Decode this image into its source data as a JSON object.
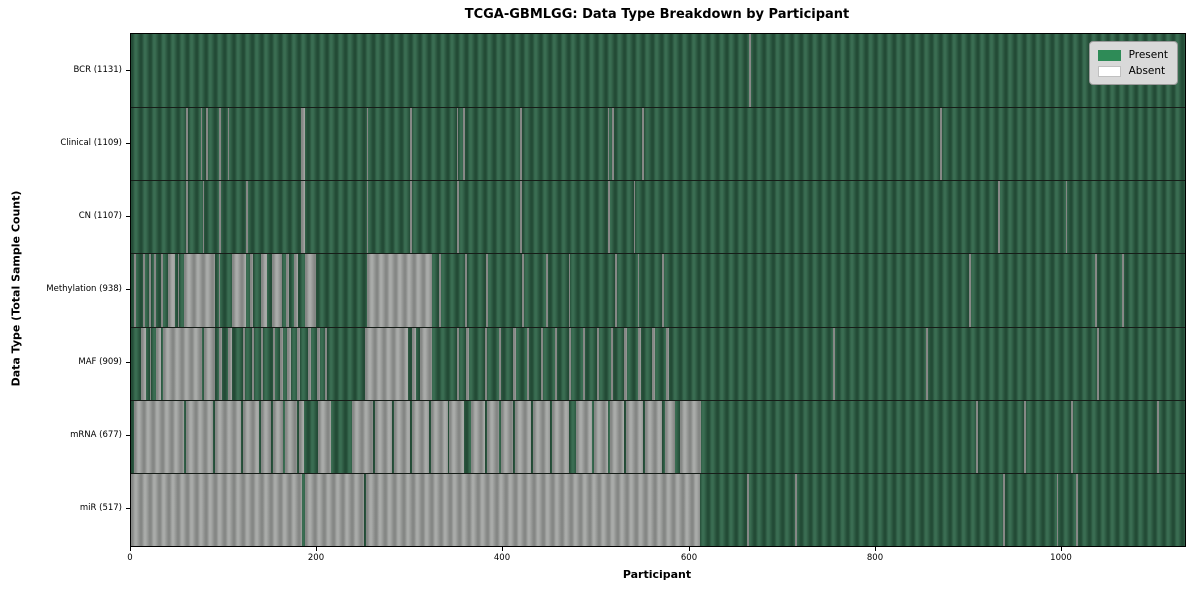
{
  "title": "TCGA-GBMLGG: Data Type Breakdown by Participant",
  "xlabel": "Participant",
  "ylabel": "Data Type (Total Sample Count)",
  "legend": {
    "present_label": "Present",
    "absent_label": "Absent",
    "present_color": "#2e8b57",
    "absent_color": "#ffffff"
  },
  "colors": {
    "present_stripe_dark": "#234b36",
    "present_stripe_light": "#3a6d52",
    "absent_stripe_dark": "#858785",
    "absent_stripe_light": "#a9aba9",
    "spine": "#000000",
    "legend_bg": "#d9d9d9"
  },
  "chart_data": {
    "type": "heatmap",
    "title": "TCGA-GBMLGG: Data Type Breakdown by Participant",
    "xlabel": "Participant",
    "ylabel": "Data Type (Total Sample Count)",
    "x_range": [
      0,
      1132
    ],
    "x_ticks": [
      0,
      200,
      400,
      600,
      800,
      1000
    ],
    "x_tick_labels": [
      "0",
      "200",
      "400",
      "600",
      "800",
      "1000"
    ],
    "legend_position": "upper right",
    "states": {
      "present": "Present",
      "absent": "Absent"
    },
    "rows": [
      {
        "name": "bcr",
        "label": "BCR (1131)",
        "data_type": "BCR",
        "total_samples": 1131,
        "absent_runs": [
          [
            664,
            666
          ]
        ]
      },
      {
        "name": "clinical",
        "label": "Clinical (1109)",
        "data_type": "Clinical",
        "total_samples": 1109,
        "absent_runs": [
          [
            59,
            61
          ],
          [
            75,
            76.5
          ],
          [
            81,
            82.5
          ],
          [
            95,
            96.5
          ],
          [
            104,
            105.5
          ],
          [
            183,
            187
          ],
          [
            253,
            255
          ],
          [
            300,
            302
          ],
          [
            350,
            351.5
          ],
          [
            357,
            358.5
          ],
          [
            418,
            420
          ],
          [
            512,
            513.5
          ],
          [
            517,
            518.5
          ],
          [
            549,
            551
          ],
          [
            869,
            871
          ]
        ]
      },
      {
        "name": "cn",
        "label": "CN (1107)",
        "data_type": "CN",
        "total_samples": 1107,
        "absent_runs": [
          [
            59,
            61
          ],
          [
            77,
            78.5
          ],
          [
            95,
            96.5
          ],
          [
            124,
            125.5
          ],
          [
            183,
            187
          ],
          [
            253,
            255
          ],
          [
            300,
            302
          ],
          [
            350,
            352
          ],
          [
            418,
            420
          ],
          [
            512,
            514
          ],
          [
            540,
            541.5
          ],
          [
            931,
            933
          ],
          [
            1004,
            1005.5
          ]
        ]
      },
      {
        "name": "methylation",
        "label": "Methylation (938)",
        "data_type": "Methylation",
        "total_samples": 938,
        "absent_runs": [
          [
            3,
            5
          ],
          [
            13,
            15
          ],
          [
            19,
            21
          ],
          [
            25,
            27
          ],
          [
            32,
            34
          ],
          [
            40,
            47
          ],
          [
            50,
            52
          ],
          [
            57,
            90
          ],
          [
            94,
            96
          ],
          [
            108,
            124
          ],
          [
            128,
            131
          ],
          [
            140,
            146
          ],
          [
            151,
            162
          ],
          [
            166,
            170
          ],
          [
            175,
            179
          ],
          [
            187,
            199
          ],
          [
            253,
            323
          ],
          [
            331,
            333
          ],
          [
            359,
            361
          ],
          [
            381,
            383
          ],
          [
            420,
            422
          ],
          [
            446,
            448
          ],
          [
            470,
            472
          ],
          [
            520,
            522
          ],
          [
            544,
            546
          ],
          [
            570,
            572
          ],
          [
            900,
            902
          ],
          [
            1035,
            1037
          ],
          [
            1064,
            1066
          ]
        ]
      },
      {
        "name": "maf",
        "label": "MAF (909)",
        "data_type": "MAF",
        "total_samples": 909,
        "absent_runs": [
          [
            11,
            16
          ],
          [
            20,
            22
          ],
          [
            27,
            32
          ],
          [
            34,
            76
          ],
          [
            78,
            90
          ],
          [
            94,
            98
          ],
          [
            104,
            108
          ],
          [
            120,
            122
          ],
          [
            130,
            132
          ],
          [
            140,
            142
          ],
          [
            152,
            155
          ],
          [
            160,
            163
          ],
          [
            168,
            172
          ],
          [
            178,
            182
          ],
          [
            190,
            193
          ],
          [
            200,
            203
          ],
          [
            208,
            210
          ],
          [
            251,
            298
          ],
          [
            302,
            306
          ],
          [
            310,
            323
          ],
          [
            350,
            352
          ],
          [
            360,
            363
          ],
          [
            380,
            382
          ],
          [
            395,
            397
          ],
          [
            410,
            413
          ],
          [
            425,
            428
          ],
          [
            440,
            443
          ],
          [
            455,
            458
          ],
          [
            470,
            473
          ],
          [
            485,
            488
          ],
          [
            500,
            503
          ],
          [
            515,
            518
          ],
          [
            530,
            533
          ],
          [
            545,
            548
          ],
          [
            560,
            563
          ],
          [
            575,
            578
          ],
          [
            754,
            756
          ],
          [
            854,
            856
          ],
          [
            1038,
            1040
          ]
        ]
      },
      {
        "name": "mrna",
        "label": "mRNA (677)",
        "data_type": "mRNA",
        "total_samples": 677,
        "absent_runs": [
          [
            3,
            57
          ],
          [
            59,
            88
          ],
          [
            90,
            118
          ],
          [
            120,
            138
          ],
          [
            140,
            150
          ],
          [
            152,
            163
          ],
          [
            165,
            178
          ],
          [
            180,
            186
          ],
          [
            201,
            215
          ],
          [
            237,
            260
          ],
          [
            262,
            280
          ],
          [
            282,
            300
          ],
          [
            302,
            320
          ],
          [
            322,
            340
          ],
          [
            342,
            358
          ],
          [
            365,
            380
          ],
          [
            382,
            395
          ],
          [
            397,
            410
          ],
          [
            412,
            430
          ],
          [
            432,
            450
          ],
          [
            452,
            470
          ],
          [
            478,
            495
          ],
          [
            497,
            512
          ],
          [
            514,
            530
          ],
          [
            532,
            550
          ],
          [
            552,
            570
          ],
          [
            574,
            584
          ],
          [
            590,
            612
          ],
          [
            908,
            910
          ],
          [
            959,
            961
          ],
          [
            1010,
            1012
          ],
          [
            1102,
            1104
          ]
        ]
      },
      {
        "name": "mir",
        "label": "miR (517)",
        "data_type": "miR",
        "total_samples": 517,
        "absent_runs": [
          [
            0,
            184
          ],
          [
            187,
            250
          ],
          [
            252,
            611
          ],
          [
            662,
            664
          ],
          [
            713,
            715
          ],
          [
            937,
            939
          ],
          [
            994,
            996
          ],
          [
            1015,
            1017
          ]
        ]
      }
    ]
  }
}
